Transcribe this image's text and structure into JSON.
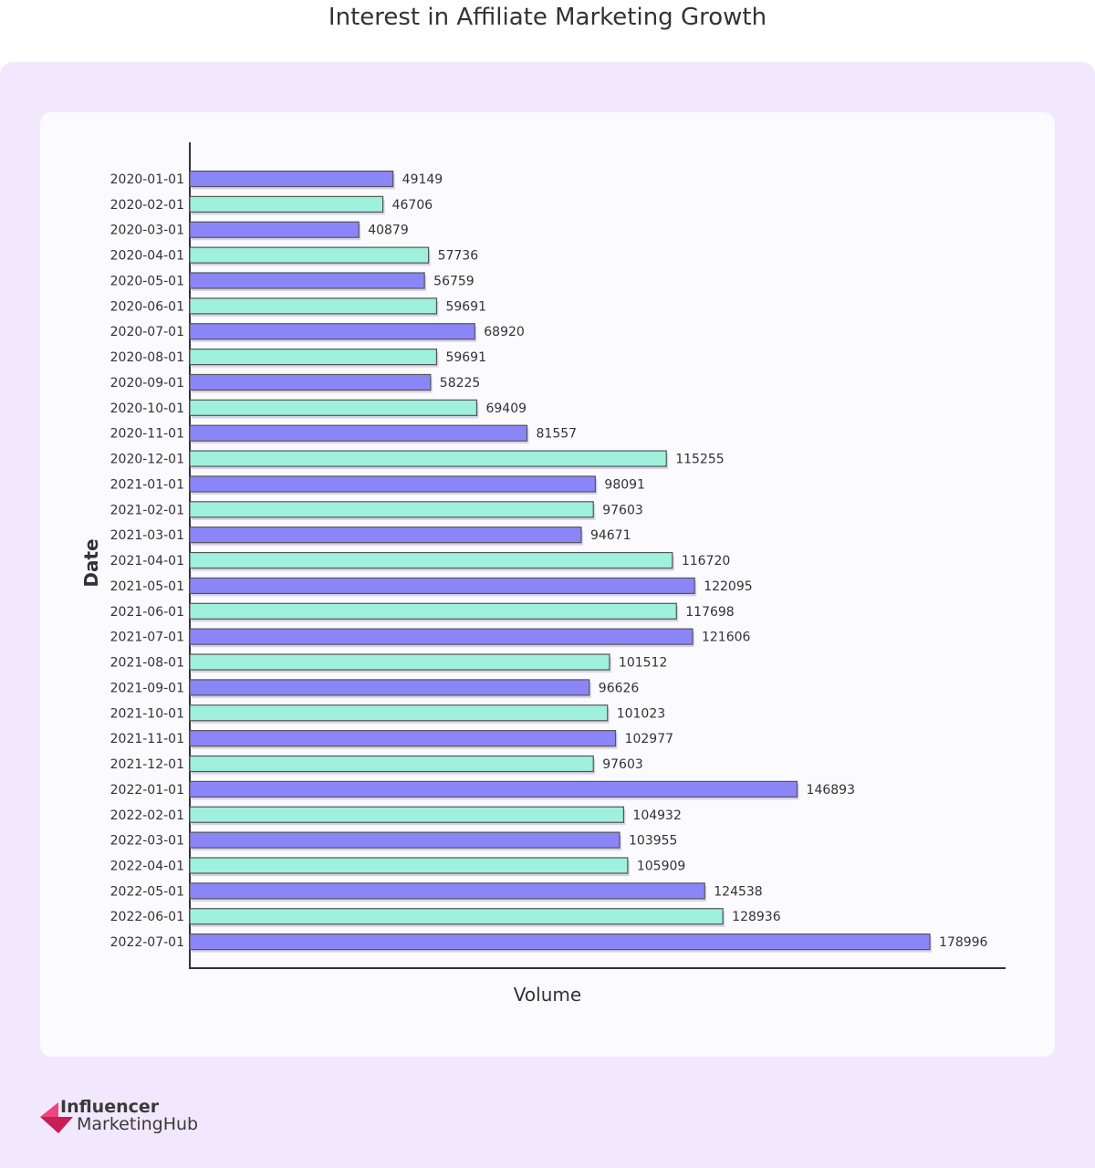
{
  "chart_data": {
    "type": "bar",
    "orientation": "horizontal",
    "title": "Interest in Affiliate Marketing Growth",
    "xlabel": "Volume",
    "ylabel": "Date",
    "grid": false,
    "colors": [
      "#8b86f7",
      "#9ff0dd"
    ],
    "categories": [
      "2020-01-01",
      "2020-02-01",
      "2020-03-01",
      "2020-04-01",
      "2020-05-01",
      "2020-06-01",
      "2020-07-01",
      "2020-08-01",
      "2020-09-01",
      "2020-10-01",
      "2020-11-01",
      "2020-12-01",
      "2021-01-01",
      "2021-02-01",
      "2021-03-01",
      "2021-04-01",
      "2021-05-01",
      "2021-06-01",
      "2021-07-01",
      "2021-08-01",
      "2021-09-01",
      "2021-10-01",
      "2021-11-01",
      "2021-12-01",
      "2022-01-01",
      "2022-02-01",
      "2022-03-01",
      "2022-04-01",
      "2022-05-01",
      "2022-06-01",
      "2022-07-01"
    ],
    "values": [
      49149,
      46706,
      40879,
      57736,
      56759,
      59691,
      68920,
      59691,
      58225,
      69409,
      81557,
      115255,
      98091,
      97603,
      94671,
      116720,
      122095,
      117698,
      121606,
      101512,
      96626,
      101023,
      102977,
      97603,
      146893,
      104932,
      103955,
      105909,
      124538,
      128936,
      178996
    ]
  },
  "brand": {
    "line1": "Influencer",
    "line2": "MarketingHub",
    "accent": "#e8336b"
  }
}
